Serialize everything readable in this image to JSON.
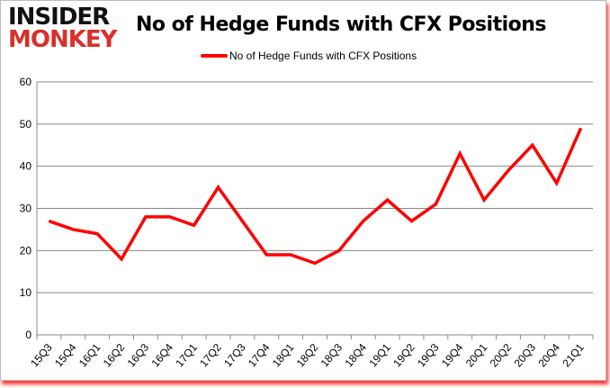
{
  "logo": {
    "line1": "INSIDER",
    "line2": "MONKEY"
  },
  "chart_data": {
    "type": "line",
    "title": "No of Hedge Funds with CFX Positions",
    "legend": {
      "label": "No of Hedge Funds with CFX Positions",
      "placement": "top-center"
    },
    "categories": [
      "15Q3",
      "15Q4",
      "16Q1",
      "16Q2",
      "16Q3",
      "16Q4",
      "17Q1",
      "17Q2",
      "17Q3",
      "17Q4",
      "18Q1",
      "18Q2",
      "18Q3",
      "18Q4",
      "19Q1",
      "19Q2",
      "19Q3",
      "19Q4",
      "20Q1",
      "20Q2",
      "20Q3",
      "20Q4",
      "21Q1"
    ],
    "series": [
      {
        "name": "No of Hedge Funds with CFX Positions",
        "color": "#ff0000",
        "values": [
          27,
          25,
          24,
          18,
          28,
          28,
          26,
          35,
          27,
          19,
          19,
          17,
          20,
          27,
          32,
          27,
          31,
          43,
          32,
          39,
          45,
          36,
          49
        ]
      }
    ],
    "yticks": [
      0,
      10,
      20,
      30,
      40,
      50,
      60
    ],
    "ylim": [
      0,
      60
    ],
    "xlabel": "",
    "ylabel": "",
    "grid": true
  }
}
